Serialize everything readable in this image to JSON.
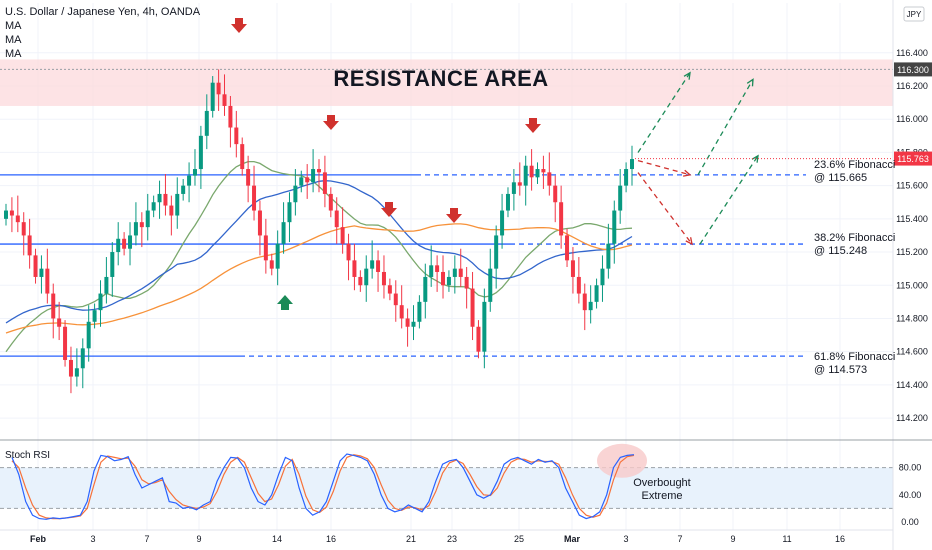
{
  "header": {
    "title": "U.S. Dollar / Japanese Yen, 4h, OANDA",
    "indicators": [
      "MA",
      "MA",
      "MA"
    ],
    "currency_button": "JPY"
  },
  "annotations": {
    "resistance": "RESISTANCE AREA",
    "fib236_line1": "23.6% Fibonacci",
    "fib236_line2": "@ 115.665",
    "fib382_line1": "38.2% Fibonacci",
    "fib382_line2": "@ 115.248",
    "fib618_line1": "61.8% Fibonacci",
    "fib618_line2": "@ 114.573",
    "overbought_line1": "Overbought",
    "overbought_line2": "Extreme",
    "rsi_title": "Stoch RSI"
  },
  "colors": {
    "bull": "#089981",
    "bear": "#f23645",
    "fib": "#2962ff",
    "ma_fast": "#3366cc",
    "ma_mid": "#7aa86d",
    "ma_slow": "#f7923a",
    "resistance_fill": "#fcd9dc",
    "rsi_k": "#2962ff",
    "rsi_d": "#f7723a",
    "arrow_up": "#1b8a57",
    "arrow_down": "#d0312d",
    "price_badge": "#f23645",
    "top_badge": "#444444"
  },
  "chart_data": [
    {
      "type": "candlestick",
      "title": "U.S. Dollar / Japanese Yen, 4h, OANDA",
      "ylim": [
        114.08,
        116.7
      ],
      "y_ticks": [
        114.2,
        114.4,
        114.6,
        114.8,
        115.0,
        115.2,
        115.4,
        115.6,
        115.8,
        116.0,
        116.2,
        116.4
      ],
      "y_tick_labels": [
        "114.200",
        "114.400",
        "114.600",
        "114.800",
        "115.000",
        "115.200",
        "115.400",
        "115.600",
        "115.800",
        "116.000",
        "116.200",
        "116.400"
      ],
      "x_tick_labels": [
        "Feb",
        "3",
        "7",
        "9",
        "14",
        "16",
        "21",
        "23",
        "25",
        "Mar",
        "3",
        "7",
        "9",
        "11",
        "16"
      ],
      "last_price": 115.763,
      "last_price_label": "115.763",
      "top_level": 116.3,
      "top_level_label": "116.300",
      "resistance_zone": [
        116.08,
        116.36
      ],
      "fibonacci_levels": [
        115.665,
        115.248,
        114.573
      ],
      "close_series": [
        115.45,
        115.42,
        115.38,
        115.3,
        115.18,
        115.05,
        115.1,
        114.95,
        114.8,
        114.75,
        114.55,
        114.45,
        114.5,
        114.62,
        114.78,
        114.85,
        114.95,
        115.05,
        115.2,
        115.28,
        115.22,
        115.3,
        115.38,
        115.35,
        115.45,
        115.5,
        115.55,
        115.48,
        115.42,
        115.55,
        115.6,
        115.66,
        115.7,
        115.9,
        116.05,
        116.22,
        116.15,
        116.08,
        115.95,
        115.85,
        115.7,
        115.6,
        115.45,
        115.3,
        115.15,
        115.1,
        115.25,
        115.38,
        115.5,
        115.6,
        115.65,
        115.62,
        115.7,
        115.68,
        115.55,
        115.45,
        115.35,
        115.25,
        115.15,
        115.05,
        115.0,
        115.1,
        115.15,
        115.08,
        115.0,
        114.95,
        114.88,
        114.8,
        114.75,
        114.78,
        114.9,
        115.05,
        115.12,
        115.08,
        115.0,
        115.05,
        115.1,
        115.05,
        114.98,
        114.75,
        114.6,
        114.9,
        115.1,
        115.3,
        115.45,
        115.55,
        115.62,
        115.6,
        115.72,
        115.65,
        115.7,
        115.68,
        115.6,
        115.5,
        115.3,
        115.15,
        115.05,
        114.95,
        114.85,
        114.9,
        115.0,
        115.1,
        115.25,
        115.45,
        115.6,
        115.7,
        115.76
      ],
      "projection_up_1": [
        [
          115.665,
          115.9
        ],
        [
          116.3
        ]
      ],
      "projection_path": "down to 115.665 then up; down to 115.248 then up",
      "sell_signals": [
        "Feb 10",
        "Feb 16",
        "Feb 18",
        "Feb 22",
        "Feb 28"
      ],
      "buy_signals": [
        "Feb 14"
      ]
    },
    {
      "type": "line",
      "title": "Stoch RSI",
      "ylim": [
        0,
        100
      ],
      "y_ticks": [
        0,
        40,
        80
      ],
      "y_tick_labels": [
        "0.00",
        "40.00",
        "80.00"
      ],
      "bands": [
        20,
        80
      ],
      "series": [
        {
          "values": [
            95,
            70,
            30,
            10,
            5,
            4,
            6,
            5,
            6,
            8,
            10,
            30,
            75,
            98,
            96,
            90,
            92,
            96,
            70,
            50,
            55,
            60,
            65,
            30,
            28,
            20,
            22,
            18,
            25,
            30,
            60,
            80,
            95,
            94,
            80,
            50,
            30,
            25,
            40,
            70,
            95,
            90,
            50,
            20,
            10,
            15,
            30,
            60,
            90,
            100,
            98,
            95,
            90,
            70,
            40,
            20,
            15,
            18,
            25,
            20,
            15,
            30,
            60,
            85,
            90,
            92,
            80,
            60,
            40,
            35,
            40,
            60,
            85,
            92,
            95,
            90,
            85,
            92,
            88,
            90,
            80,
            50,
            30,
            10,
            5,
            8,
            15,
            40,
            80,
            95,
            98,
            99
          ]
        },
        {
          "values": [
            90,
            80,
            50,
            25,
            10,
            6,
            5,
            5,
            6,
            7,
            9,
            20,
            55,
            88,
            97,
            95,
            93,
            94,
            82,
            62,
            56,
            58,
            62,
            45,
            33,
            25,
            22,
            20,
            22,
            27,
            45,
            70,
            88,
            95,
            88,
            65,
            42,
            30,
            34,
            55,
            82,
            92,
            70,
            38,
            18,
            14,
            22,
            45,
            75,
            95,
            99,
            97,
            93,
            80,
            55,
            32,
            20,
            17,
            22,
            21,
            18,
            24,
            45,
            72,
            87,
            91,
            86,
            70,
            52,
            40,
            39,
            50,
            72,
            88,
            93,
            92,
            88,
            90,
            89,
            89,
            85,
            65,
            40,
            20,
            10,
            7,
            10,
            28,
            62,
            88,
            96,
            98
          ]
        }
      ]
    }
  ]
}
